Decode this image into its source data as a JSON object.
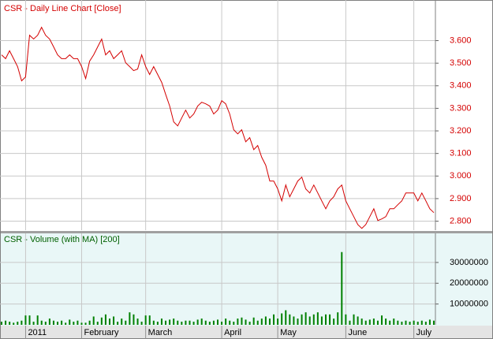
{
  "chart_data": [
    {
      "type": "line",
      "title": "CSR - Daily Line Chart [Close]",
      "color": "#d40000",
      "values": [
        3.537,
        3.52,
        3.555,
        3.52,
        3.485,
        3.422,
        3.439,
        3.624,
        3.607,
        3.624,
        3.659,
        3.624,
        3.607,
        3.572,
        3.537,
        3.52,
        3.52,
        3.537,
        3.52,
        3.52,
        3.485,
        3.432,
        3.509,
        3.537,
        3.572,
        3.607,
        3.537,
        3.555,
        3.52,
        3.537,
        3.555,
        3.502,
        3.485,
        3.467,
        3.474,
        3.537,
        3.485,
        3.45,
        3.485,
        3.45,
        3.415,
        3.362,
        3.31,
        3.24,
        3.222,
        3.257,
        3.292,
        3.257,
        3.275,
        3.31,
        3.327,
        3.32,
        3.31,
        3.275,
        3.292,
        3.334,
        3.32,
        3.275,
        3.205,
        3.187,
        3.205,
        3.152,
        3.17,
        3.117,
        3.135,
        3.083,
        3.048,
        2.978,
        2.978,
        2.943,
        2.89,
        2.96,
        2.908,
        2.943,
        2.978,
        2.995,
        2.943,
        2.925,
        2.96,
        2.925,
        2.89,
        2.855,
        2.89,
        2.908,
        2.943,
        2.96,
        2.89,
        2.855,
        2.82,
        2.785,
        2.768,
        2.785,
        2.82,
        2.855,
        2.803,
        2.81,
        2.82,
        2.855,
        2.855,
        2.873,
        2.89,
        2.925,
        2.925,
        2.925,
        2.89,
        2.925,
        2.89,
        2.855,
        2.838
      ],
      "ylim": [
        2.76,
        3.78
      ],
      "yticks": [
        {
          "value": 3.6,
          "label": "3.600"
        },
        {
          "value": 3.5,
          "label": "3.500"
        },
        {
          "value": 3.4,
          "label": "3.400"
        },
        {
          "value": 3.3,
          "label": "3.300"
        },
        {
          "value": 3.2,
          "label": "3.200"
        },
        {
          "value": 3.1,
          "label": "3.100"
        },
        {
          "value": 3.0,
          "label": "3.000"
        },
        {
          "value": 2.9,
          "label": "2.900"
        },
        {
          "value": 2.8,
          "label": "2.800"
        }
      ],
      "grid": true
    },
    {
      "type": "bar",
      "title": "CSR - Volume (with MA) [200]",
      "color": "#008000",
      "values": [
        1500000,
        2000000,
        1500000,
        1000000,
        1500000,
        2000000,
        4500000,
        4500000,
        1500000,
        4500000,
        2000000,
        1500000,
        3000000,
        2000000,
        1500000,
        2000000,
        1000000,
        2500000,
        1500000,
        2000000,
        1000000,
        1000000,
        2000000,
        4000000,
        1500000,
        3500000,
        5000000,
        3000000,
        4000000,
        1500000,
        3000000,
        2000000,
        6000000,
        5000000,
        3000000,
        1500000,
        4500000,
        4500000,
        2000000,
        1500000,
        3000000,
        2000000,
        2500000,
        3000000,
        2000000,
        1500000,
        2000000,
        2000000,
        1500000,
        2500000,
        3000000,
        2000000,
        1500000,
        2000000,
        2500000,
        1500000,
        3000000,
        2000000,
        1500000,
        3000000,
        3500000,
        2500000,
        1500000,
        3500000,
        2000000,
        3000000,
        4000000,
        3000000,
        5000000,
        3000000,
        5500000,
        7000000,
        5000000,
        4000000,
        3000000,
        5000000,
        6000000,
        4000000,
        5000000,
        6000000,
        4000000,
        5000000,
        5000000,
        3000000,
        6000000,
        35000000,
        5000000,
        2000000,
        5000000,
        4000000,
        3000000,
        2000000,
        2500000,
        3000000,
        2000000,
        4500000,
        3000000,
        2000000,
        3000000,
        2000000,
        1500000,
        2000000,
        1500000,
        2000000,
        1500000,
        2000000,
        1500000,
        2500000,
        2000000
      ],
      "ylim": [
        0,
        44000000
      ],
      "yticks": [
        10000000,
        20000000,
        30000000
      ],
      "grid": true,
      "xticks": [
        {
          "value": 6,
          "label": "2011"
        },
        {
          "value": 20,
          "label": "February"
        },
        {
          "value": 36,
          "label": "March"
        },
        {
          "value": 55,
          "label": "April"
        },
        {
          "value": 69,
          "label": "May"
        },
        {
          "value": 86,
          "label": "June"
        },
        {
          "value": 103,
          "label": "July"
        }
      ]
    }
  ]
}
